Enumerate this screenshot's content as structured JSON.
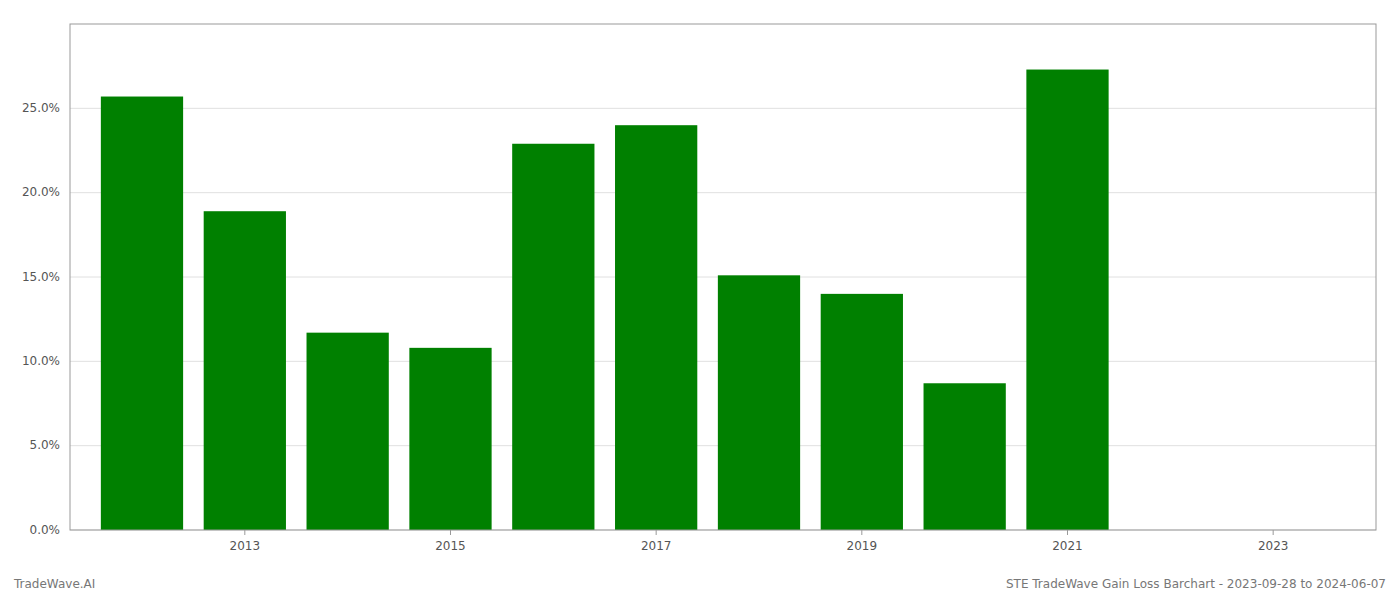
{
  "chart_data": {
    "type": "bar",
    "x": [
      2012,
      2013,
      2014,
      2015,
      2016,
      2017,
      2018,
      2019,
      2020,
      2021
    ],
    "values": [
      0.257,
      0.189,
      0.117,
      0.108,
      0.229,
      0.24,
      0.151,
      0.14,
      0.087,
      0.273
    ],
    "color": "#008000",
    "xlim": [
      2011.3,
      2024.0
    ],
    "xticks": [
      2013,
      2015,
      2017,
      2019,
      2021,
      2023
    ],
    "ylim": [
      0.0,
      0.3
    ],
    "yticks": [
      {
        "value": 0.0,
        "label": "0.0%"
      },
      {
        "value": 0.05,
        "label": "5.0%"
      },
      {
        "value": 0.1,
        "label": "10.0%"
      },
      {
        "value": 0.15,
        "label": "15.0%"
      },
      {
        "value": 0.2,
        "label": "20.0%"
      },
      {
        "value": 0.25,
        "label": "25.0%"
      }
    ],
    "grid": true,
    "annotations": [
      "TradeWave.AI",
      "STE TradeWave Gain Loss Barchart - 2023-09-28 to 2024-06-07"
    ]
  }
}
